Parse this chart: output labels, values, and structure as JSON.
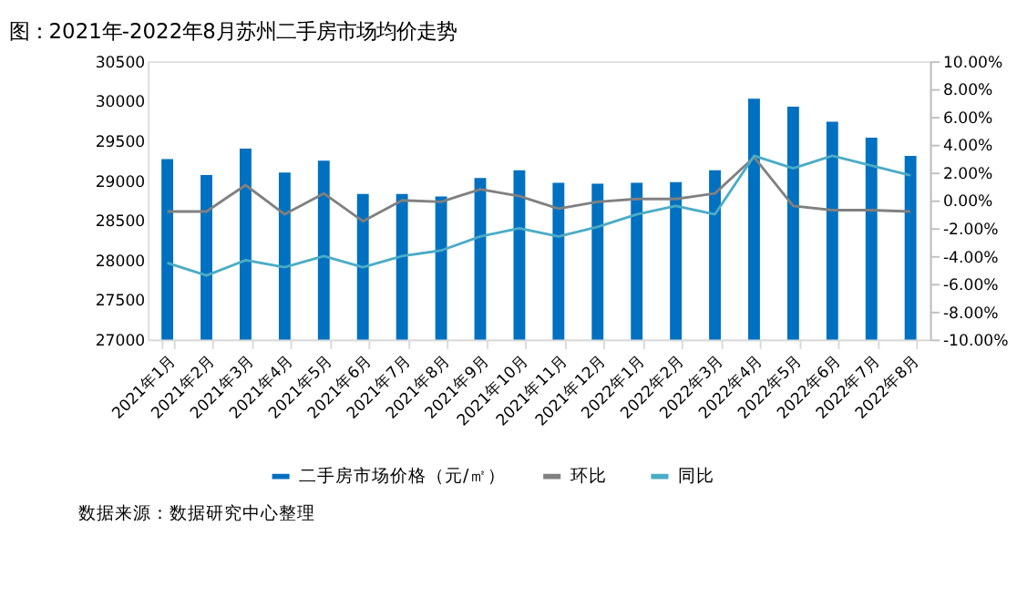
{
  "chart_data": {
    "type": "bar",
    "title": "图：2021年-2022年8月苏州二手房市场均价走势",
    "categories": [
      "2021年1月",
      "2021年2月",
      "2021年3月",
      "2021年4月",
      "2021年5月",
      "2021年6月",
      "2021年7月",
      "2021年8月",
      "2021年9月",
      "2021年10月",
      "2021年11月",
      "2021年12月",
      "2022年1月",
      "2022年2月",
      "2022年3月",
      "2022年4月",
      "2022年5月",
      "2022年6月",
      "2022年7月",
      "2022年8月"
    ],
    "series": [
      {
        "name": "二手房市场价格（元/㎡）",
        "color": "#0070c0",
        "values": [
          29270,
          29070,
          29400,
          29100,
          29250,
          28830,
          28830,
          28800,
          29030,
          29130,
          28970,
          28960,
          28970,
          28980,
          29130,
          30030,
          29930,
          29740,
          29540,
          29310
        ]
      },
      {
        "name": "环比",
        "type": "line",
        "axis": "y2",
        "color": "#808080",
        "values": [
          -0.8,
          -0.8,
          1.1,
          -1.0,
          0.5,
          -1.5,
          0.0,
          -0.1,
          0.8,
          0.3,
          -0.6,
          -0.1,
          0.1,
          0.1,
          0.5,
          3.1,
          -0.4,
          -0.7,
          -0.7,
          -0.8
        ]
      },
      {
        "name": "同比",
        "type": "line",
        "axis": "y2",
        "color": "#4bacc6",
        "values": [
          -4.5,
          -5.4,
          -4.3,
          -4.8,
          -4.0,
          -4.8,
          -4.0,
          -3.6,
          -2.6,
          -2.0,
          -2.6,
          -1.9,
          -1.0,
          -0.4,
          -1.0,
          3.2,
          2.3,
          3.2,
          2.5,
          1.8
        ]
      }
    ],
    "ylim": [
      27000,
      30500
    ],
    "yticks": [
      27000,
      27500,
      28000,
      28500,
      29000,
      29500,
      30000,
      30500
    ],
    "y2lim": [
      -10,
      10
    ],
    "y2ticks": [
      {
        "value": -10,
        "label": "-10.00%"
      },
      {
        "value": -8,
        "label": "-8.00%"
      },
      {
        "value": -6,
        "label": "-6.00%"
      },
      {
        "value": -4,
        "label": "-4.00%"
      },
      {
        "value": -2,
        "label": "-2.00%"
      },
      {
        "value": 0,
        "label": "0.00%"
      },
      {
        "value": 2,
        "label": "2.00%"
      },
      {
        "value": 4,
        "label": "4.00%"
      },
      {
        "value": 6,
        "label": "6.00%"
      },
      {
        "value": 8,
        "label": "8.00%"
      },
      {
        "value": 10,
        "label": "10.00%"
      }
    ],
    "grid": false,
    "legend": "bottom",
    "line_style": "solid",
    "marker": "none",
    "annotations": [
      "数据来源：数据研究中心整理"
    ]
  }
}
